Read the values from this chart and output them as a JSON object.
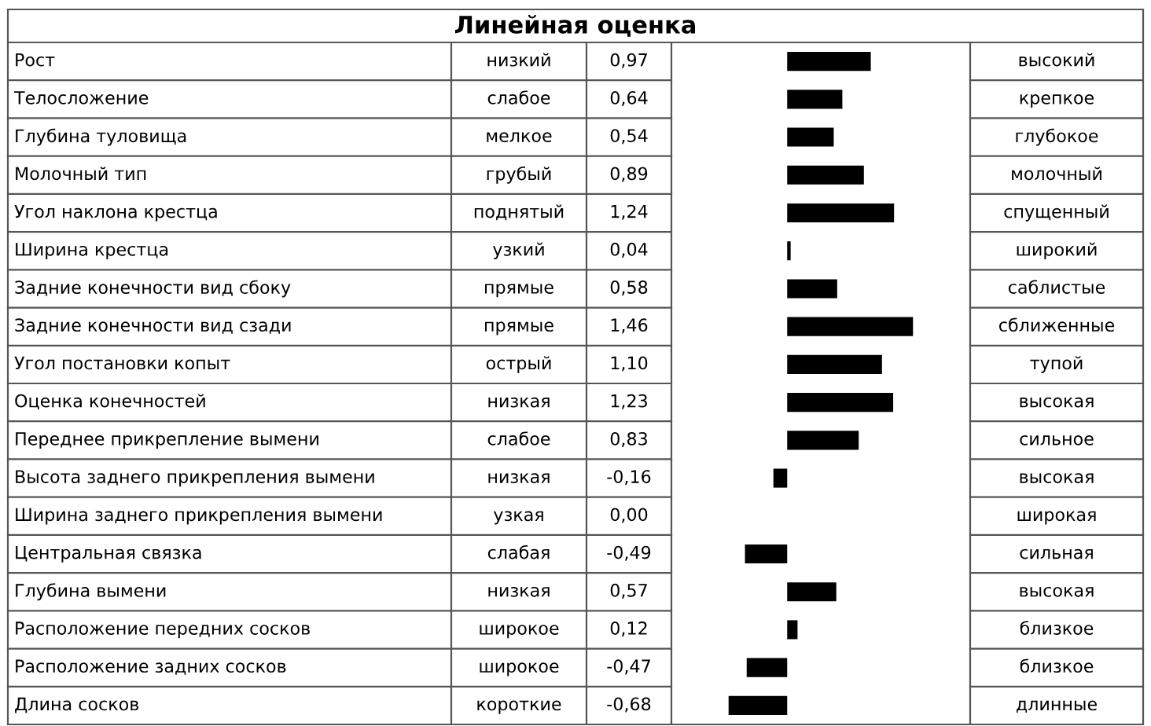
{
  "chart_data": {
    "type": "bar",
    "orientation": "horizontal",
    "title": "Линейная оценка",
    "categories": [
      "Рост",
      "Телосложение",
      "Глубина туловища",
      "Молочный тип",
      "Угол наклона крестца",
      "Ширина крестца",
      "Задние конечности вид сбоку",
      "Задние конечности вид сзади",
      "Угол постановки копыт",
      "Оценка конечностей",
      "Переднее прикрепление вымени",
      "Высота заднего прикрепления вымени",
      "Ширина заднего прикрепления вымени",
      "Центральная связка",
      "Глубина вымени",
      "Расположение передних сосков",
      "Расположение задних сосков",
      "Длина сосков"
    ],
    "values": [
      0.97,
      0.64,
      0.54,
      0.89,
      1.24,
      0.04,
      0.58,
      1.46,
      1.1,
      1.23,
      0.83,
      -0.16,
      0.0,
      -0.49,
      0.57,
      0.12,
      -0.47,
      -0.68
    ],
    "value_labels": [
      "0,97",
      "0,64",
      "0,54",
      "0,89",
      "1,24",
      "0,04",
      "0,58",
      "1,46",
      "1,10",
      "1,23",
      "0,83",
      "-0,16",
      "0,00",
      "-0,49",
      "0,57",
      "0,12",
      "-0,47",
      "-0,68"
    ],
    "color": "#000000",
    "annotations": [
      "низкий",
      "высокий",
      "слабое",
      "крепкое",
      "мелкое",
      "глубокое",
      "грубый",
      "молочный",
      "поднятый",
      "спущенный",
      "узкий",
      "широкий",
      "прямые",
      "саблистые",
      "прямые",
      "сближенные",
      "острый",
      "тупой",
      "низкая",
      "высокая",
      "слабое",
      "сильное",
      "низкая",
      "высокая",
      "узкая",
      "широкая",
      "слабая",
      "сильная",
      "низкая",
      "высокая",
      "широкое",
      "близкое",
      "широкое",
      "близкое",
      "короткие",
      "длинные"
    ]
  }
}
